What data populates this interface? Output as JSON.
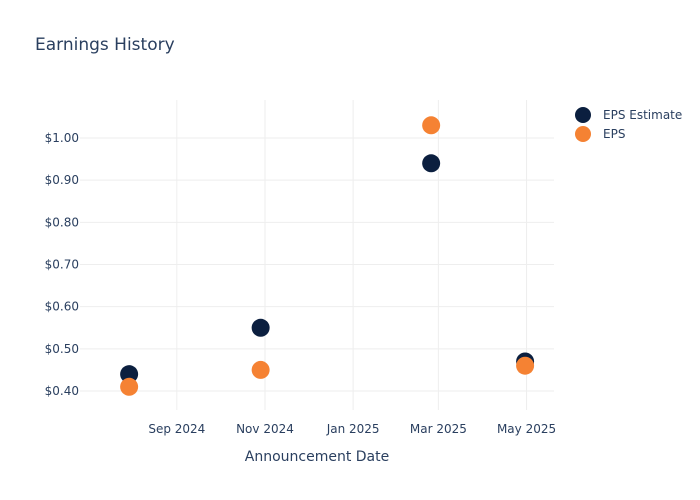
{
  "chart_data": {
    "type": "scatter",
    "title": "Earnings History",
    "xlabel": "Announcement Date",
    "ylabel": "",
    "x_axis_type": "date",
    "xlim": [
      "2024-06-26",
      "2025-05-20"
    ],
    "ylim": [
      0.355,
      1.09
    ],
    "x_ticks": [
      {
        "value": "2024-09-01",
        "label": "Sep 2024"
      },
      {
        "value": "2024-11-01",
        "label": "Nov 2024"
      },
      {
        "value": "2025-01-01",
        "label": "Jan 2025"
      },
      {
        "value": "2025-03-01",
        "label": "Mar 2025"
      },
      {
        "value": "2025-05-01",
        "label": "May 2025"
      }
    ],
    "y_ticks": [
      {
        "value": 0.4,
        "label": "$0.40"
      },
      {
        "value": 0.5,
        "label": "$0.50"
      },
      {
        "value": 0.6,
        "label": "$0.60"
      },
      {
        "value": 0.7,
        "label": "$0.70"
      },
      {
        "value": 0.8,
        "label": "$0.80"
      },
      {
        "value": 0.9,
        "label": "$0.90"
      },
      {
        "value": 1.0,
        "label": "$1.00"
      }
    ],
    "grid": true,
    "legend_position": "top-right",
    "series": [
      {
        "name": "EPS Estimate",
        "color": "#0b1f3f",
        "points": [
          {
            "x": "2024-07-30",
            "y": 0.44
          },
          {
            "x": "2024-10-29",
            "y": 0.55
          },
          {
            "x": "2025-02-24",
            "y": 0.94
          },
          {
            "x": "2025-04-30",
            "y": 0.47
          }
        ]
      },
      {
        "name": "EPS",
        "color": "#f58233",
        "points": [
          {
            "x": "2024-07-30",
            "y": 0.41
          },
          {
            "x": "2024-10-29",
            "y": 0.45
          },
          {
            "x": "2025-02-24",
            "y": 1.03
          },
          {
            "x": "2025-04-30",
            "y": 0.46
          }
        ]
      }
    ]
  }
}
